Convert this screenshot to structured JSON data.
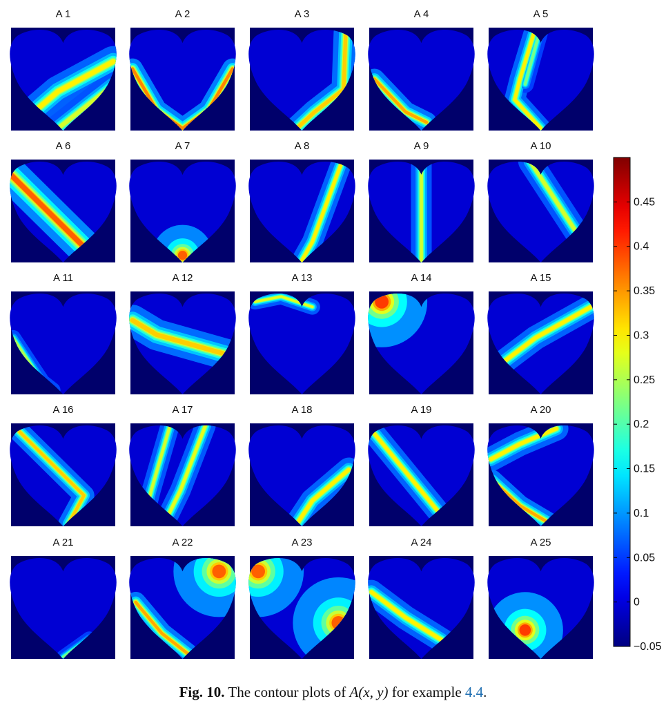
{
  "chart_data": {
    "type": "heatmap",
    "description_style": "contour",
    "panels": [
      {
        "title": "A 1",
        "features": [
          {
            "kind": "line",
            "p": [
              [
                0.15,
                0.88
              ],
              [
                0.45,
                0.62
              ],
              [
                0.98,
                0.33
              ]
            ],
            "w": 0.09,
            "peak": 0.3
          },
          {
            "kind": "line",
            "p": [
              [
                0.45,
                0.98
              ],
              [
                0.75,
                0.74
              ],
              [
                0.98,
                0.56
              ]
            ],
            "w": 0.08,
            "peak": 0.27
          }
        ]
      },
      {
        "title": "A 2",
        "features": [
          {
            "kind": "line",
            "p": [
              [
                0.02,
                0.4
              ],
              [
                0.25,
                0.8
              ],
              [
                0.5,
                0.98
              ],
              [
                0.75,
                0.8
              ],
              [
                0.98,
                0.4
              ]
            ],
            "w": 0.06,
            "peak": 0.36
          }
        ]
      },
      {
        "title": "A 3",
        "features": [
          {
            "kind": "line",
            "p": [
              [
                0.92,
                0.05
              ],
              [
                0.9,
                0.6
              ],
              [
                0.62,
                0.82
              ],
              [
                0.45,
                0.98
              ]
            ],
            "w": 0.07,
            "peak": 0.32
          }
        ]
      },
      {
        "title": "A 4",
        "features": [
          {
            "kind": "line",
            "p": [
              [
                0.05,
                0.5
              ],
              [
                0.35,
                0.82
              ],
              [
                0.55,
                0.92
              ]
            ],
            "w": 0.06,
            "peak": 0.34
          }
        ]
      },
      {
        "title": "A 5",
        "features": [
          {
            "kind": "line",
            "p": [
              [
                0.45,
                0.0
              ],
              [
                0.3,
                0.5
              ],
              [
                0.25,
                0.7
              ],
              [
                0.5,
                0.98
              ]
            ],
            "w": 0.06,
            "peak": 0.3
          },
          {
            "kind": "line",
            "p": [
              [
                0.5,
                0.0
              ],
              [
                0.35,
                0.55
              ]
            ],
            "w": 0.05,
            "peak": 0.22
          }
        ]
      },
      {
        "title": "A 6",
        "features": [
          {
            "kind": "line",
            "p": [
              [
                0.0,
                0.15
              ],
              [
                0.4,
                0.55
              ],
              [
                0.7,
                0.85
              ]
            ],
            "w": 0.1,
            "peak": 0.38
          }
        ]
      },
      {
        "title": "A 7",
        "features": [
          {
            "kind": "blob",
            "c": [
              0.5,
              0.93
            ],
            "r": 0.08,
            "peak": 0.38
          }
        ]
      },
      {
        "title": "A 8",
        "features": [
          {
            "kind": "line",
            "p": [
              [
                0.88,
                0.03
              ],
              [
                0.6,
                0.8
              ],
              [
                0.5,
                0.98
              ]
            ],
            "w": 0.06,
            "peak": 0.3
          }
        ]
      },
      {
        "title": "A 9",
        "features": [
          {
            "kind": "line",
            "p": [
              [
                0.5,
                0.02
              ],
              [
                0.5,
                0.98
              ]
            ],
            "w": 0.06,
            "peak": 0.27
          }
        ]
      },
      {
        "title": "A 10",
        "features": [
          {
            "kind": "line",
            "p": [
              [
                0.4,
                0.02
              ],
              [
                0.87,
                0.75
              ]
            ],
            "w": 0.07,
            "peak": 0.27
          }
        ]
      },
      {
        "title": "A 11",
        "features": [
          {
            "kind": "line",
            "p": [
              [
                0.02,
                0.45
              ],
              [
                0.3,
                0.88
              ],
              [
                0.4,
                0.96
              ]
            ],
            "w": 0.045,
            "peak": 0.25
          }
        ]
      },
      {
        "title": "A 12",
        "features": [
          {
            "kind": "line",
            "p": [
              [
                0.02,
                0.28
              ],
              [
                0.25,
                0.42
              ],
              [
                0.95,
                0.62
              ]
            ],
            "w": 0.09,
            "peak": 0.32
          }
        ]
      },
      {
        "title": "A 13",
        "features": [
          {
            "kind": "line",
            "p": [
              [
                0.05,
                0.1
              ],
              [
                0.3,
                0.05
              ],
              [
                0.6,
                0.15
              ]
            ],
            "w": 0.045,
            "peak": 0.28
          }
        ]
      },
      {
        "title": "A 14",
        "features": [
          {
            "kind": "blob",
            "c": [
              0.12,
              0.1
            ],
            "r": 0.12,
            "peak": 0.4
          }
        ]
      },
      {
        "title": "A 15",
        "features": [
          {
            "kind": "line",
            "p": [
              [
                0.15,
                0.68
              ],
              [
                0.45,
                0.45
              ],
              [
                0.98,
                0.15
              ]
            ],
            "w": 0.07,
            "peak": 0.3
          }
        ]
      },
      {
        "title": "A 16",
        "features": [
          {
            "kind": "line",
            "p": [
              [
                0.08,
                0.08
              ],
              [
                0.7,
                0.7
              ],
              [
                0.55,
                0.98
              ]
            ],
            "w": 0.06,
            "peak": 0.32
          }
        ]
      },
      {
        "title": "A 17",
        "features": [
          {
            "kind": "line",
            "p": [
              [
                0.38,
                0.02
              ],
              [
                0.2,
                0.65
              ],
              [
                0.15,
                0.85
              ]
            ],
            "w": 0.055,
            "peak": 0.27
          },
          {
            "kind": "line",
            "p": [
              [
                0.72,
                0.02
              ],
              [
                0.48,
                0.65
              ],
              [
                0.35,
                0.92
              ]
            ],
            "w": 0.06,
            "peak": 0.28
          }
        ]
      },
      {
        "title": "A 18",
        "features": [
          {
            "kind": "line",
            "p": [
              [
                0.95,
                0.45
              ],
              [
                0.6,
                0.75
              ],
              [
                0.45,
                0.98
              ]
            ],
            "w": 0.07,
            "peak": 0.3
          }
        ]
      },
      {
        "title": "A 19",
        "features": [
          {
            "kind": "line",
            "p": [
              [
                0.05,
                0.1
              ],
              [
                0.68,
                0.88
              ]
            ],
            "w": 0.065,
            "peak": 0.3
          }
        ]
      },
      {
        "title": "A 20",
        "features": [
          {
            "kind": "line",
            "p": [
              [
                0.02,
                0.35
              ],
              [
                0.3,
                0.2
              ],
              [
                0.65,
                0.05
              ]
            ],
            "w": 0.07,
            "peak": 0.3
          },
          {
            "kind": "line",
            "p": [
              [
                0.03,
                0.55
              ],
              [
                0.3,
                0.8
              ],
              [
                0.6,
                0.98
              ]
            ],
            "w": 0.06,
            "peak": 0.34
          }
        ]
      },
      {
        "title": "A 21",
        "features": [
          {
            "kind": "line",
            "p": [
              [
                0.5,
                0.98
              ],
              [
                0.75,
                0.8
              ]
            ],
            "w": 0.04,
            "peak": 0.22
          }
        ]
      },
      {
        "title": "A 22",
        "features": [
          {
            "kind": "blob",
            "c": [
              0.85,
              0.15
            ],
            "r": 0.12,
            "peak": 0.38
          },
          {
            "kind": "line",
            "p": [
              [
                0.05,
                0.45
              ],
              [
                0.3,
                0.75
              ],
              [
                0.55,
                0.95
              ]
            ],
            "w": 0.06,
            "peak": 0.34
          }
        ]
      },
      {
        "title": "A 23",
        "features": [
          {
            "kind": "blob",
            "c": [
              0.08,
              0.15
            ],
            "r": 0.12,
            "peak": 0.38
          },
          {
            "kind": "blob",
            "c": [
              0.85,
              0.65
            ],
            "r": 0.12,
            "peak": 0.38
          }
        ]
      },
      {
        "title": "A 24",
        "features": [
          {
            "kind": "line",
            "p": [
              [
                0.02,
                0.35
              ],
              [
                0.35,
                0.6
              ],
              [
                0.7,
                0.82
              ]
            ],
            "w": 0.07,
            "peak": 0.3
          }
        ]
      },
      {
        "title": "A 25",
        "features": [
          {
            "kind": "blob",
            "c": [
              0.35,
              0.72
            ],
            "r": 0.1,
            "peak": 0.4
          }
        ]
      }
    ],
    "colorbar": {
      "min": -0.05,
      "max": 0.5,
      "ticks": [
        -0.05,
        0,
        0.05,
        0.1,
        0.15,
        0.2,
        0.25,
        0.3,
        0.35,
        0.4,
        0.45
      ],
      "tick_labels": [
        "−0.05",
        "0",
        "0.05",
        "0.1",
        "0.15",
        "0.2",
        "0.25",
        "0.3",
        "0.35",
        "0.4",
        "0.45"
      ],
      "colormap": "jet"
    },
    "background_color": "#00006b",
    "base_value": -0.005
  },
  "caption": {
    "label": "Fig. 10.",
    "text_prefix": " The contour plots of ",
    "math": "A(x, y)",
    "text_middle": " for example ",
    "ref": "4.4",
    "text_suffix": "."
  }
}
